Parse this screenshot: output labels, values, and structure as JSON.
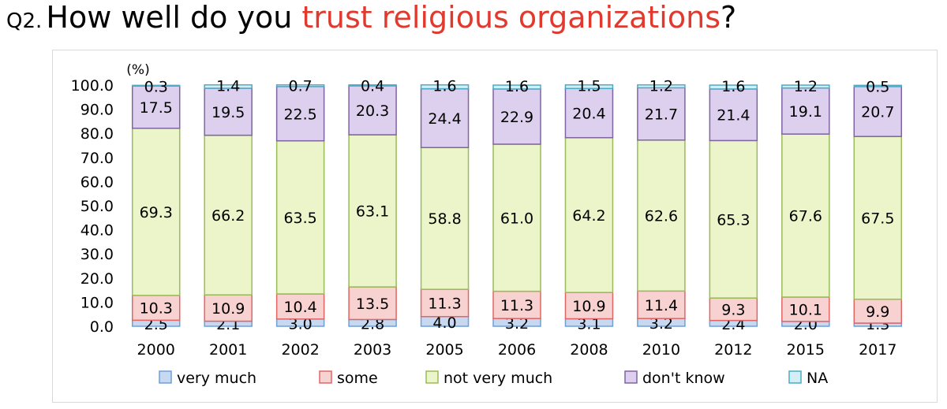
{
  "heading": {
    "label": "Q2.",
    "text_before": "How well do you ",
    "text_emphasis": "trust religious organizations",
    "text_after": "?",
    "emphasis_color": "#e03a2f"
  },
  "chart_data": {
    "type": "bar",
    "stacked": true,
    "ylabel": "(%)",
    "ylim": [
      0,
      100
    ],
    "yticks": [
      "0.0",
      "10.0",
      "20.0",
      "30.0",
      "40.0",
      "50.0",
      "60.0",
      "70.0",
      "80.0",
      "90.0",
      "100.0"
    ],
    "categories": [
      "2000",
      "2001",
      "2002",
      "2003",
      "2005",
      "2006",
      "2008",
      "2010",
      "2012",
      "2015",
      "2017"
    ],
    "legend_position": "bottom",
    "grid": false,
    "series": [
      {
        "name": "very much",
        "color": "#c6d9f1",
        "border": "#6f9fd8",
        "values": [
          2.5,
          2.1,
          3.0,
          2.8,
          4.0,
          3.2,
          3.1,
          3.2,
          2.4,
          2.0,
          1.3
        ],
        "labels": [
          "2.5",
          "2.1",
          "3.0",
          "2.8",
          "4.0",
          "3.2",
          "3.1",
          "3.2",
          "2.4",
          "2.0",
          "1.3"
        ]
      },
      {
        "name": "some",
        "color": "#f8d2d0",
        "border": "#e06666",
        "values": [
          10.3,
          10.9,
          10.4,
          13.5,
          11.3,
          11.3,
          10.9,
          11.4,
          9.3,
          10.1,
          9.9
        ],
        "labels": [
          "10.3",
          "10.9",
          "10.4",
          "13.5",
          "11.3",
          "11.3",
          "10.9",
          "11.4",
          "9.3",
          "10.1",
          "9.9"
        ]
      },
      {
        "name": "not very much",
        "color": "#ebf5c9",
        "border": "#9bbb59",
        "values": [
          69.3,
          66.2,
          63.5,
          63.1,
          58.8,
          61.0,
          64.2,
          62.6,
          65.3,
          67.6,
          67.5
        ],
        "labels": [
          "69.3",
          "66.2",
          "63.5",
          "63.1",
          "58.8",
          "61.0",
          "64.2",
          "62.6",
          "65.3",
          "67.6",
          "67.5"
        ]
      },
      {
        "name": "don't know",
        "color": "#dcd0ee",
        "border": "#8064a2",
        "values": [
          17.5,
          19.5,
          22.5,
          20.3,
          24.4,
          22.9,
          20.4,
          21.7,
          21.4,
          19.1,
          20.7
        ],
        "labels": [
          "17.5",
          "19.5",
          "22.5",
          "20.3",
          "24.4",
          "22.9",
          "20.4",
          "21.7",
          "21.4",
          "19.1",
          "20.7"
        ]
      },
      {
        "name": "NA",
        "color": "#d4eef5",
        "border": "#4bacc6",
        "values": [
          0.3,
          1.4,
          0.7,
          0.4,
          1.6,
          1.6,
          1.5,
          1.2,
          1.6,
          1.2,
          0.5
        ],
        "labels": [
          "0.3",
          "1.4",
          "0.7",
          "0.4",
          "1.6",
          "1.6",
          "1.5",
          "1.2",
          "1.6",
          "1.2",
          "0.5"
        ]
      }
    ]
  }
}
